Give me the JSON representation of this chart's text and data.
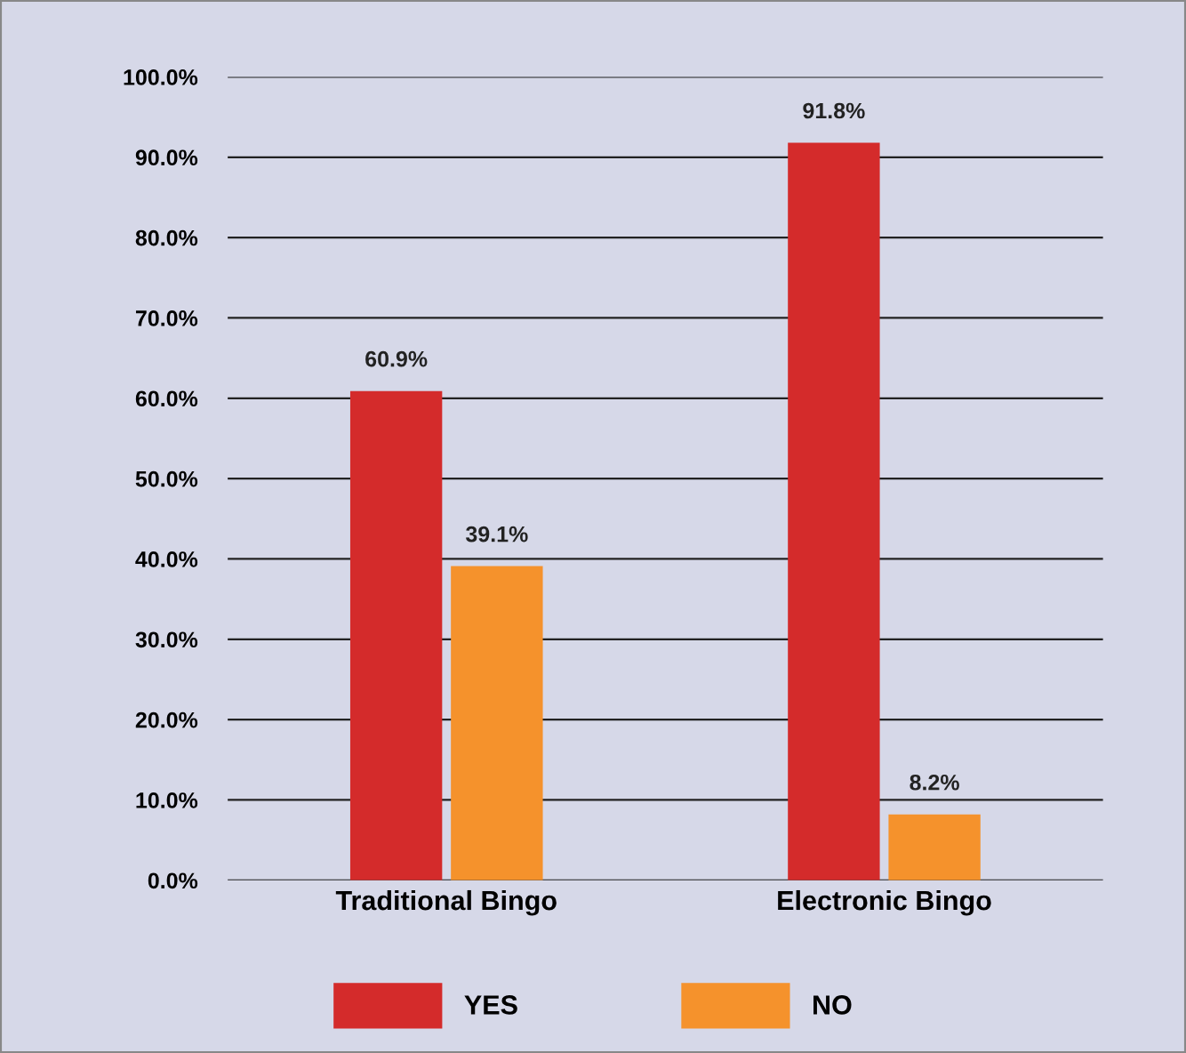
{
  "chart_data": {
    "type": "bar",
    "categories": [
      "Traditional Bingo",
      "Electronic Bingo"
    ],
    "series": [
      {
        "name": "YES",
        "color": "#d42b2b",
        "values": [
          60.9,
          91.8
        ],
        "value_labels": [
          "60.9%",
          "91.8%"
        ]
      },
      {
        "name": "NO",
        "color": "#f5922c",
        "values": [
          39.1,
          8.2
        ],
        "value_labels": [
          "39.1%",
          "8.2%"
        ]
      }
    ],
    "ylim": [
      0,
      100
    ],
    "yticks": [
      {
        "value": 0,
        "label": "0.0%"
      },
      {
        "value": 10,
        "label": "10.0%"
      },
      {
        "value": 20,
        "label": "20.0%"
      },
      {
        "value": 30,
        "label": "30.0%"
      },
      {
        "value": 40,
        "label": "40.0%"
      },
      {
        "value": 50,
        "label": "50.0%"
      },
      {
        "value": 60,
        "label": "60.0%"
      },
      {
        "value": 70,
        "label": "70.0%"
      },
      {
        "value": 80,
        "label": "80.0%"
      },
      {
        "value": 90,
        "label": "90.0%"
      },
      {
        "value": 100,
        "label": "100.0%"
      }
    ],
    "grid": "y",
    "legend": "bottom"
  }
}
